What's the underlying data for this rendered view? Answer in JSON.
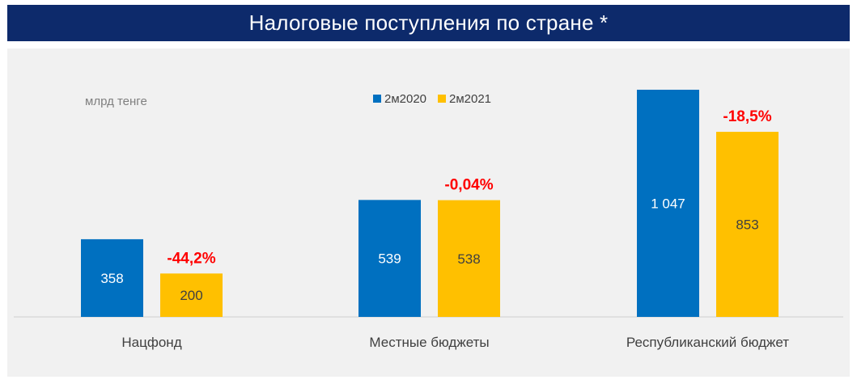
{
  "header": {
    "title": "Налоговые поступления по стране *"
  },
  "chart_data": {
    "type": "bar",
    "unit_label": "млрд тенге",
    "categories": [
      "Нацфонд",
      "Местные бюджеты",
      "Республиканский бюджет"
    ],
    "series": [
      {
        "name": "2м2020",
        "color": "#0070c0",
        "values": [
          358,
          539,
          1047
        ],
        "labels": [
          "358",
          "539",
          "1 047"
        ]
      },
      {
        "name": "2м2021",
        "color": "#ffc000",
        "values": [
          200,
          538,
          853
        ],
        "labels": [
          "200",
          "538",
          "853"
        ]
      }
    ],
    "changes": [
      "-44,2%",
      "-0,04%",
      "-18,5%"
    ],
    "change_color": "#ff0000",
    "ylim": [
      0,
      1100
    ],
    "legend": "top-center",
    "grid": false
  }
}
